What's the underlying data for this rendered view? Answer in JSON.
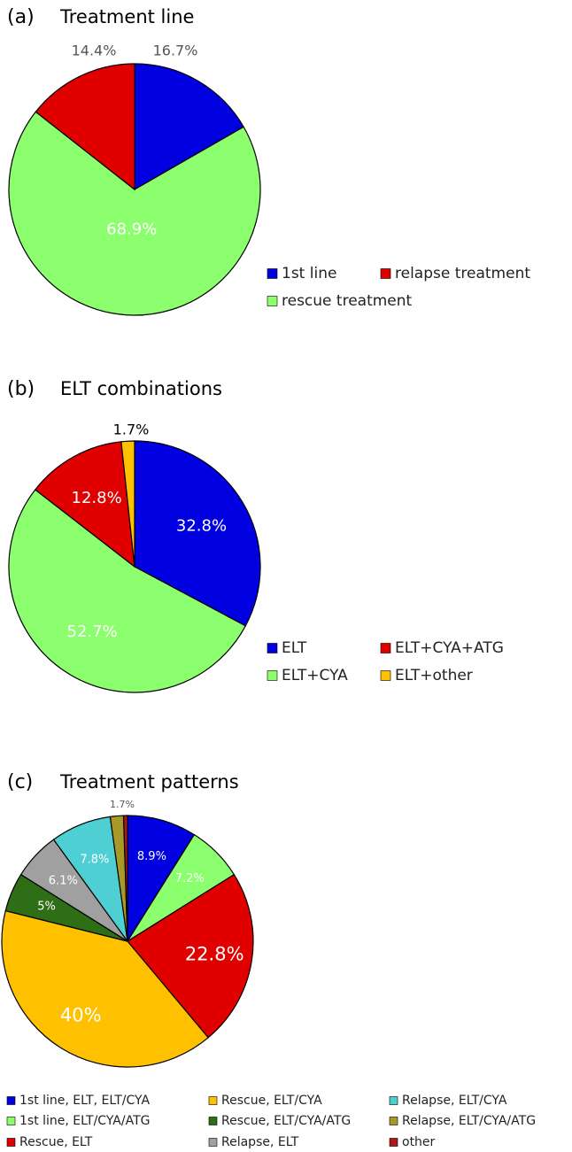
{
  "chart_data": [
    {
      "type": "pie",
      "label": "(a)",
      "title": "Treatment line",
      "categories": [
        "1st line",
        "rescue treatment",
        "relapse treatment"
      ],
      "values": [
        16.7,
        68.9,
        14.4
      ],
      "value_labels": [
        "16.7%",
        "68.9%",
        "14.4%"
      ],
      "colors": [
        "#0000e0",
        "#8cff6e",
        "#e00000"
      ]
    },
    {
      "type": "pie",
      "label": "(b)",
      "title": "ELT combinations",
      "categories": [
        "ELT",
        "ELT+CYA",
        "ELT+CYA+ATG",
        "ELT+other"
      ],
      "values": [
        32.8,
        52.7,
        12.8,
        1.7
      ],
      "value_labels": [
        "32.8%",
        "52.7%",
        "12.8%",
        "1.7%"
      ],
      "colors": [
        "#0000e0",
        "#8cff6e",
        "#e00000",
        "#ffc000"
      ]
    },
    {
      "type": "pie",
      "label": "(c)",
      "title": "Treatment patterns",
      "categories": [
        "1st line, ELT, ELT/CYA",
        "1st line, ELT/CYA/ATG",
        "Rescue, ELT",
        "Rescue, ELT/CYA",
        "Rescue, ELT/CYA/ATG",
        "Relapse, ELT",
        "Relapse, ELT/CYA",
        "Relapse, ELT/CYA/ATG",
        "other"
      ],
      "values": [
        8.9,
        7.2,
        22.8,
        40,
        5,
        6.1,
        7.8,
        1.7,
        0.5
      ],
      "value_labels": [
        "8.9%",
        "7.2%",
        "22.8%",
        "40%",
        "5%",
        "6.1%",
        "7.8%",
        "1.7%",
        null
      ],
      "colors": [
        "#0000e0",
        "#8cff6e",
        "#e00000",
        "#ffc000",
        "#2e6e14",
        "#a0a0a0",
        "#4ecfd3",
        "#a89a28",
        "#b01818"
      ]
    }
  ]
}
